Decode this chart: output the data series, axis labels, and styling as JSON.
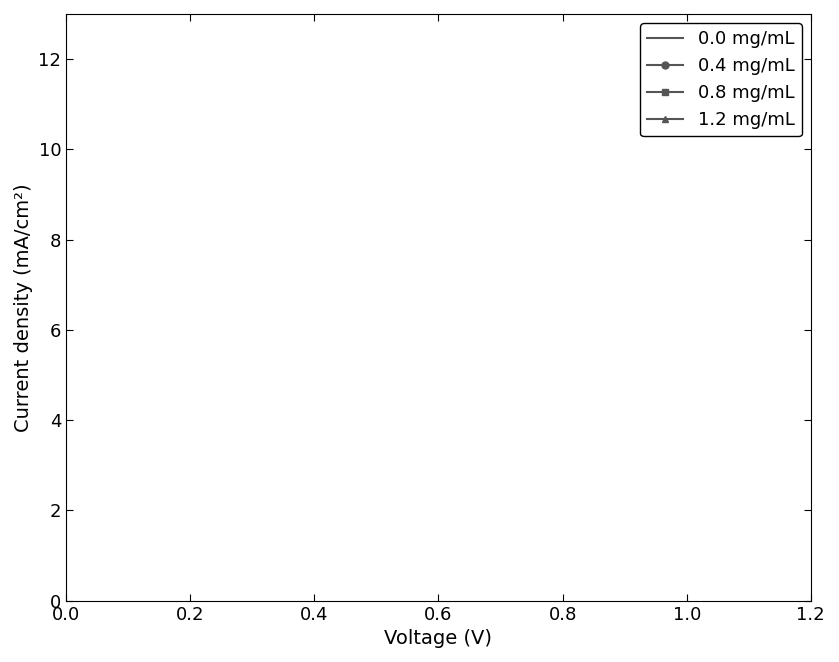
{
  "title": "",
  "xlabel": "Voltage (V)",
  "ylabel": "Current density (mA/cm²)",
  "xlim": [
    0,
    1.2
  ],
  "ylim": [
    0,
    13
  ],
  "yticks": [
    0,
    2,
    4,
    6,
    8,
    10,
    12
  ],
  "xticks": [
    0.0,
    0.2,
    0.4,
    0.6,
    0.8,
    1.0,
    1.2
  ],
  "line_color": "#555555",
  "bg_color": "#ffffff",
  "series": [
    {
      "label": "0.0 mg/mL",
      "marker": "none",
      "jsc": 11.0,
      "voc": 0.93,
      "n": 5.0,
      "Rs": 2.0,
      "Rsh": 35.0
    },
    {
      "label": "0.4 mg/mL",
      "marker": "o",
      "jsc": 11.95,
      "voc": 1.005,
      "n": 6.5,
      "Rs": 1.0,
      "Rsh": 200.0
    },
    {
      "label": "0.8 mg/mL",
      "marker": "s",
      "jsc": 11.95,
      "voc": 1.055,
      "n": 6.5,
      "Rs": 0.8,
      "Rsh": 200.0
    },
    {
      "label": "1.2 mg/mL",
      "marker": "^",
      "jsc": 11.5,
      "voc": 1.115,
      "n": 6.5,
      "Rs": 0.8,
      "Rsh": 200.0
    }
  ],
  "legend_loc": "upper right",
  "font_size": 14,
  "tick_font_size": 13,
  "marker_size": 5,
  "marker_every": 8
}
